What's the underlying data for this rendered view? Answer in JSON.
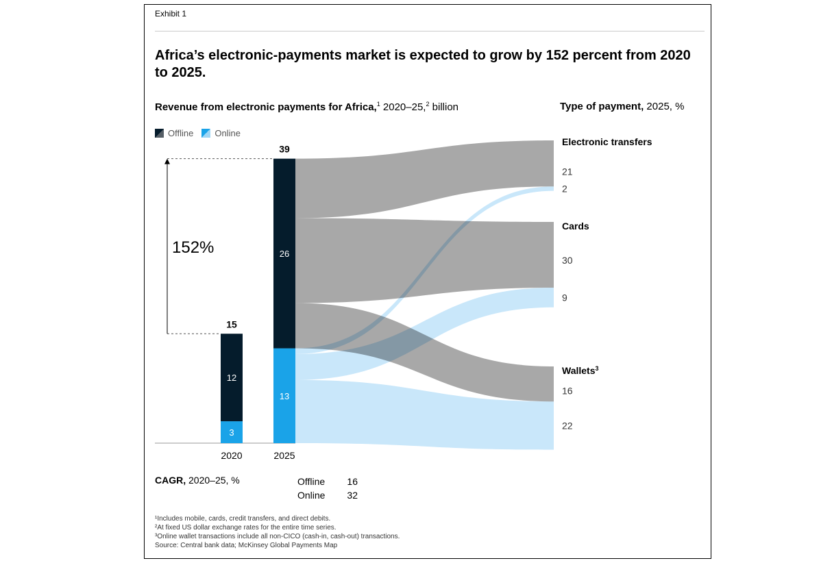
{
  "exhibit": "Exhibit 1",
  "title": "Africa’s electronic-payments market is expected to grow by 152 percent from 2020 to 2025.",
  "subtitle_left": {
    "bold": "Revenue from electronic payments for Africa,",
    "sup1": "1",
    "mid": " 2020–25,",
    "sup2": "2",
    "rest": " billion"
  },
  "subtitle_right": {
    "bold": "Type of payment,",
    "rest": " 2025, %"
  },
  "legend": [
    {
      "name": "Offline",
      "color": "#051c2c"
    },
    {
      "name": "Online",
      "color": "#1aa3e8"
    }
  ],
  "chart_data": {
    "type": "bar",
    "stacked": true,
    "categories": [
      "2020",
      "2025"
    ],
    "series": [
      {
        "name": "Offline",
        "values": [
          12,
          26
        ],
        "color": "#051c2c"
      },
      {
        "name": "Online",
        "values": [
          3,
          13
        ],
        "color": "#1aa3e8"
      }
    ],
    "totals": [
      15,
      39
    ],
    "growth_label": "152%",
    "flows": {
      "type": "sankey",
      "target_groups": [
        {
          "name": "Electronic transfers",
          "sup": "",
          "items": [
            {
              "source": "Offline",
              "value": 21,
              "label": "21"
            },
            {
              "source": "Online",
              "value": 2,
              "label": "2"
            }
          ]
        },
        {
          "name": "Cards",
          "sup": "",
          "items": [
            {
              "source": "Offline",
              "value": 30,
              "label": "30"
            },
            {
              "source": "Online",
              "value": 9,
              "label": "9"
            }
          ]
        },
        {
          "name": "Wallets",
          "sup": "3",
          "items": [
            {
              "source": "Offline",
              "value": 16,
              "label": "16"
            },
            {
              "source": "Online",
              "value": 22,
              "label": "22"
            }
          ]
        }
      ],
      "colors": {
        "Offline": "#a3a3a3",
        "Online": "#bfe3f9"
      }
    }
  },
  "cagr": {
    "label_bold": "CAGR,",
    "label_rest": " 2020–25, %",
    "rows": [
      {
        "name": "Offline",
        "value": "16"
      },
      {
        "name": "Online",
        "value": "32"
      }
    ]
  },
  "footnotes": [
    "¹Includes mobile, cards, credit transfers, and direct debits.",
    "²At fixed US dollar exchange rates for the entire time series.",
    "³Online wallet transactions include all non-CICO (cash-in, cash-out) transactions.",
    " Source: Central bank data; McKinsey Global Payments Map"
  ]
}
